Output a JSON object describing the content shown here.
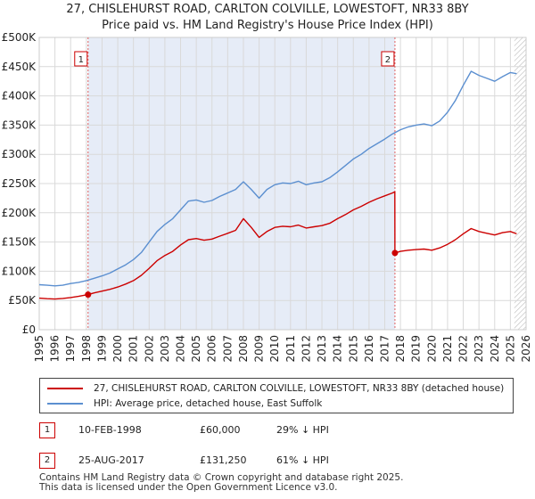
{
  "title": {
    "line1": "27, CHISLEHURST ROAD, CARLTON COLVILLE, LOWESTOFT, NR33 8BY",
    "line2": "Price paid vs. HM Land Registry's House Price Index (HPI)"
  },
  "chart_data": {
    "type": "line",
    "xlim": [
      1995,
      2026
    ],
    "ylim": [
      0,
      500000
    ],
    "yticks": [
      {
        "value": 0,
        "label": "£0"
      },
      {
        "value": 50000,
        "label": "£50K"
      },
      {
        "value": 100000,
        "label": "£100K"
      },
      {
        "value": 150000,
        "label": "£150K"
      },
      {
        "value": 200000,
        "label": "£200K"
      },
      {
        "value": 250000,
        "label": "£250K"
      },
      {
        "value": 300000,
        "label": "£300K"
      },
      {
        "value": 350000,
        "label": "£350K"
      },
      {
        "value": 400000,
        "label": "£400K"
      },
      {
        "value": 450000,
        "label": "£450K"
      },
      {
        "value": 500000,
        "label": "£500K"
      }
    ],
    "xticks": [
      "1995",
      "1996",
      "1997",
      "1998",
      "1999",
      "2000",
      "2001",
      "2002",
      "2003",
      "2004",
      "2005",
      "2006",
      "2007",
      "2008",
      "2009",
      "2010",
      "2011",
      "2012",
      "2013",
      "2014",
      "2015",
      "2016",
      "2017",
      "2018",
      "2019",
      "2020",
      "2021",
      "2022",
      "2023",
      "2024",
      "2025",
      "2026"
    ],
    "grid": true,
    "shade": {
      "from": 1998.11,
      "to": 2017.65
    },
    "hatch_from": 2025.25,
    "series": [
      {
        "name": "HPI: Average price, detached house, East Suffolk",
        "color": "#5b8fd0",
        "x": [
          1995.0,
          1995.5,
          1996.0,
          1996.5,
          1997.0,
          1997.5,
          1998.0,
          1998.5,
          1999.0,
          1999.5,
          2000.0,
          2000.5,
          2001.0,
          2001.5,
          2002.0,
          2002.5,
          2003.0,
          2003.5,
          2004.0,
          2004.5,
          2005.0,
          2005.5,
          2006.0,
          2006.5,
          2007.0,
          2007.5,
          2008.0,
          2008.5,
          2009.0,
          2009.5,
          2010.0,
          2010.5,
          2011.0,
          2011.5,
          2012.0,
          2012.5,
          2013.0,
          2013.5,
          2014.0,
          2014.5,
          2015.0,
          2015.5,
          2016.0,
          2016.5,
          2017.0,
          2017.5,
          2018.0,
          2018.5,
          2019.0,
          2019.5,
          2020.0,
          2020.5,
          2021.0,
          2021.5,
          2022.0,
          2022.5,
          2023.0,
          2023.5,
          2024.0,
          2024.5,
          2025.0,
          2025.4
        ],
        "values": [
          77000,
          76000,
          75000,
          76000,
          79000,
          81000,
          84000,
          88000,
          92000,
          97000,
          104000,
          111000,
          120000,
          132000,
          150000,
          168000,
          180000,
          190000,
          205000,
          220000,
          222000,
          218000,
          221000,
          228000,
          234000,
          240000,
          253000,
          240000,
          225000,
          240000,
          248000,
          251000,
          250000,
          254000,
          248000,
          251000,
          253000,
          260000,
          270000,
          281000,
          292000,
          300000,
          310000,
          318000,
          326000,
          335000,
          342000,
          347000,
          350000,
          352000,
          349000,
          357000,
          372000,
          392000,
          418000,
          442000,
          435000,
          430000,
          425000,
          433000,
          440000,
          438000
        ]
      },
      {
        "name": "27, CHISLEHURST ROAD, CARLTON COLVILLE, LOWESTOFT, NR33 8BY (detached house)",
        "color": "#cc0000",
        "x": [
          1995.0,
          1995.5,
          1996.0,
          1996.5,
          1997.0,
          1997.5,
          1998.11,
          1998.5,
          1999.0,
          1999.5,
          2000.0,
          2000.5,
          2001.0,
          2001.5,
          2002.0,
          2002.5,
          2003.0,
          2003.5,
          2004.0,
          2004.5,
          2005.0,
          2005.5,
          2006.0,
          2006.5,
          2007.0,
          2007.5,
          2008.0,
          2008.5,
          2009.0,
          2009.5,
          2010.0,
          2010.5,
          2011.0,
          2011.5,
          2012.0,
          2012.5,
          2013.0,
          2013.5,
          2014.0,
          2014.5,
          2015.0,
          2015.5,
          2016.0,
          2016.5,
          2017.0,
          2017.5,
          2017.64,
          2017.65,
          2018.0,
          2018.5,
          2019.0,
          2019.5,
          2020.0,
          2020.5,
          2021.0,
          2021.5,
          2022.0,
          2022.5,
          2023.0,
          2023.5,
          2024.0,
          2024.5,
          2025.0,
          2025.4
        ],
        "values": [
          54000,
          53000,
          52500,
          53500,
          55000,
          57000,
          60000,
          63000,
          66000,
          69000,
          73000,
          78000,
          84000,
          93000,
          105000,
          118000,
          127000,
          134000,
          145000,
          154000,
          156000,
          153000,
          155000,
          160000,
          165000,
          170000,
          190000,
          175000,
          158000,
          168000,
          175000,
          177000,
          176000,
          179000,
          174000,
          176000,
          178000,
          182000,
          190000,
          197000,
          205000,
          211000,
          218000,
          224000,
          229000,
          234000,
          236000,
          131250,
          134000,
          136000,
          137000,
          138000,
          136000,
          140000,
          146000,
          154000,
          164000,
          173000,
          168000,
          165000,
          162000,
          166000,
          168000,
          164000
        ]
      }
    ],
    "sales": [
      {
        "label": "1",
        "x": 1998.11,
        "value": 60000
      },
      {
        "label": "2",
        "x": 2017.65,
        "value": 131250
      }
    ]
  },
  "legend": {
    "items": [
      {
        "label": "27, CHISLEHURST ROAD, CARLTON COLVILLE, LOWESTOFT, NR33 8BY (detached house)",
        "color": "#cc0000"
      },
      {
        "label": "HPI: Average price, detached house, East Suffolk",
        "color": "#5b8fd0"
      }
    ]
  },
  "sales_table": [
    {
      "num": "1",
      "date": "10-FEB-1998",
      "price": "£60,000",
      "hpi": "29% ↓ HPI"
    },
    {
      "num": "2",
      "date": "25-AUG-2017",
      "price": "£131,250",
      "hpi": "61% ↓ HPI"
    }
  ],
  "footer": {
    "line1": "Contains HM Land Registry data © Crown copyright and database right 2025.",
    "line2": "This data is licensed under the Open Government Licence v3.0."
  }
}
